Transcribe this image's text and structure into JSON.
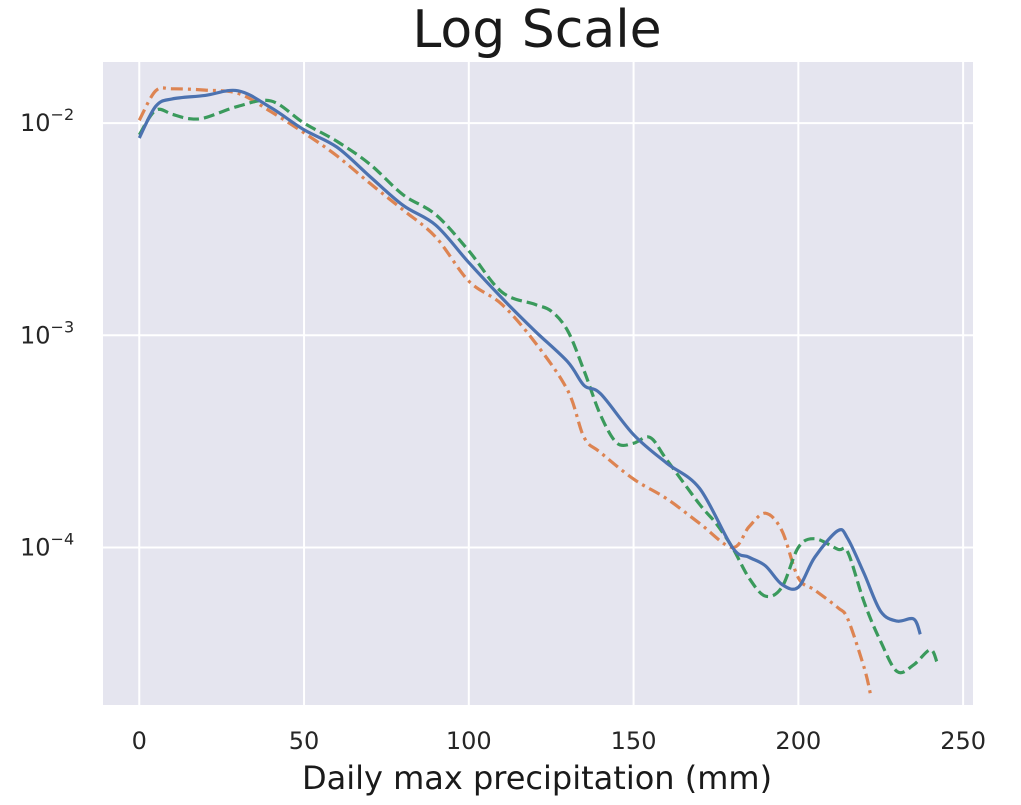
{
  "chart_data": {
    "type": "line",
    "title": "Log Scale",
    "xlabel": "Daily max precipitation (mm)",
    "ylabel": "",
    "yscale": "log",
    "xlim": [
      -11,
      253
    ],
    "ylim": [
      1.81e-05,
      0.0194
    ],
    "xticks": [
      0,
      50,
      100,
      150,
      200,
      250
    ],
    "xtick_labels": [
      "0",
      "50",
      "100",
      "150",
      "200",
      "250"
    ],
    "yticks": [
      {
        "value": 0.01,
        "base": "10",
        "exponent": "−2"
      },
      {
        "value": 0.001,
        "base": "10",
        "exponent": "−3"
      },
      {
        "value": 0.0001,
        "base": "10",
        "exponent": "−4"
      }
    ],
    "grid": true,
    "legend": "none",
    "colors": {
      "background": "#e5e5ef",
      "grid": "#ffffff",
      "blue": "#4c72b0",
      "orange": "#dd8452",
      "green": "#3a9a5c"
    },
    "series": [
      {
        "color": "#4c72b0",
        "style": "solid",
        "x": [
          0,
          5,
          10,
          20,
          30,
          40,
          50,
          60,
          70,
          80,
          90,
          100,
          110,
          120,
          130,
          135,
          140,
          150,
          160,
          170,
          180,
          185,
          190,
          195,
          200,
          205,
          212,
          215,
          220,
          225,
          230,
          235,
          237
        ],
        "y": [
          0.0085,
          0.012,
          0.013,
          0.0135,
          0.0142,
          0.0118,
          0.0093,
          0.0077,
          0.0056,
          0.0041,
          0.0033,
          0.0022,
          0.0015,
          0.00105,
          0.00075,
          0.00058,
          0.00053,
          0.00034,
          0.00025,
          0.00019,
          0.0001,
          9e-05,
          8.2e-05,
          6.7e-05,
          6.5e-05,
          9e-05,
          0.00012,
          0.00011,
          7.5e-05,
          5e-05,
          4.5e-05,
          4.6e-05,
          3.9e-05
        ]
      },
      {
        "color": "#dd8452",
        "style": "dashdot",
        "x": [
          0,
          5,
          10,
          20,
          30,
          40,
          50,
          60,
          70,
          80,
          90,
          100,
          110,
          120,
          130,
          135,
          140,
          150,
          160,
          170,
          180,
          185,
          190,
          195,
          200,
          205,
          212,
          215,
          220,
          222
        ],
        "y": [
          0.0103,
          0.0142,
          0.0145,
          0.0143,
          0.0138,
          0.0113,
          0.009,
          0.007,
          0.0052,
          0.0039,
          0.0029,
          0.0018,
          0.0014,
          0.00093,
          0.00055,
          0.00033,
          0.00028,
          0.00021,
          0.00017,
          0.00013,
          0.0001,
          0.000125,
          0.000145,
          0.00012,
          7.2e-05,
          6.3e-05,
          5.2e-05,
          4.6e-05,
          2.7e-05,
          2e-05
        ]
      },
      {
        "color": "#3a9a5c",
        "style": "dashed",
        "x": [
          0,
          5,
          10,
          15,
          20,
          30,
          40,
          50,
          60,
          70,
          80,
          90,
          100,
          110,
          120,
          125,
          130,
          135,
          140,
          145,
          150,
          155,
          160,
          170,
          175,
          180,
          185,
          190,
          195,
          200,
          205,
          212,
          215,
          220,
          225,
          230,
          235,
          240,
          242
        ],
        "y": [
          0.0088,
          0.0115,
          0.011,
          0.0105,
          0.0106,
          0.012,
          0.0127,
          0.01,
          0.0082,
          0.0064,
          0.0046,
          0.0037,
          0.0025,
          0.0016,
          0.0014,
          0.0013,
          0.00105,
          0.00068,
          0.00042,
          0.00031,
          0.00031,
          0.00033,
          0.00026,
          0.00016,
          0.00013,
          0.0001,
          7.2e-05,
          5.9e-05,
          6.5e-05,
          0.0001,
          0.00011,
          9.8e-05,
          9.5e-05,
          5.5e-05,
          3.6e-05,
          2.6e-05,
          2.8e-05,
          3.3e-05,
          2.9e-05
        ]
      }
    ]
  }
}
